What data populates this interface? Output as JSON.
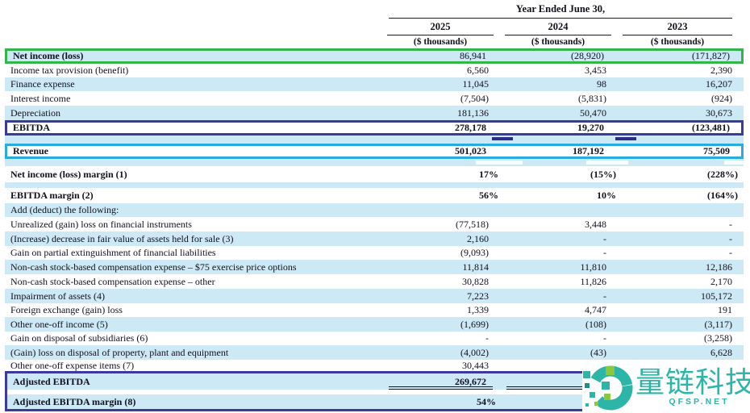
{
  "header": {
    "title": "Year Ended June 30,",
    "columns": [
      {
        "year": "2025",
        "unit": "($ thousands)"
      },
      {
        "year": "2024",
        "unit": "($ thousands)"
      },
      {
        "year": "2023",
        "unit": "($ thousands)"
      }
    ]
  },
  "rows": [
    {
      "label": "Net income (loss)",
      "values": [
        "86,941",
        "(28,920)",
        "(171,827)"
      ],
      "bold_label": true,
      "bg": "blue",
      "frame": "green"
    },
    {
      "label": "Income tax provision (benefit)",
      "values": [
        "6,560",
        "3,453",
        "2,390"
      ],
      "bg": "white"
    },
    {
      "label": "Finance expense",
      "values": [
        "11,045",
        "98",
        "16,207"
      ],
      "bg": "blue"
    },
    {
      "label": "Interest income",
      "values": [
        "(7,504)",
        "(5,831)",
        "(924)"
      ],
      "bg": "white"
    },
    {
      "label": "Depreciation",
      "values": [
        "181,136",
        "50,470",
        "30,673"
      ],
      "bg": "blue"
    },
    {
      "label": "EBITDA",
      "values": [
        "278,178",
        "19,270",
        "(123,481)"
      ],
      "bold_label": true,
      "bold_values": true,
      "bg": "white",
      "frame": "purple"
    },
    {
      "type": "spacer",
      "bg": "blue",
      "marks": "dark"
    },
    {
      "label": "Revenue",
      "values": [
        "501,023",
        "187,192",
        "75,509"
      ],
      "bold_label": true,
      "bold_values": true,
      "bg": "white",
      "frame": "cyan"
    },
    {
      "type": "spacer",
      "bg": "blue",
      "marks": "light"
    },
    {
      "label": "Net income (loss) margin (1)",
      "values": [
        "17%",
        "(15%)",
        "(228%)"
      ],
      "bold_label": true,
      "bold_values": true,
      "bg": "white",
      "percent": true
    },
    {
      "type": "spacer",
      "bg": "blue"
    },
    {
      "label": "EBITDA margin (2)",
      "values": [
        "56%",
        "10%",
        "(164%)"
      ],
      "bold_label": true,
      "bold_values": true,
      "bg": "white",
      "percent": true
    },
    {
      "label": "Add (deduct) the following:",
      "values": [
        "",
        "",
        ""
      ],
      "bg": "blue"
    },
    {
      "label": "Unrealized (gain) loss on financial instruments",
      "values": [
        "(77,518)",
        "3,448",
        "-"
      ],
      "bg": "white"
    },
    {
      "label": "(Increase) decrease in fair value of assets held for sale (3)",
      "values": [
        "2,160",
        "-",
        "-"
      ],
      "bg": "blue"
    },
    {
      "label": "Gain on partial extinguishment of financial liabilities",
      "values": [
        "(9,093)",
        "-",
        "-"
      ],
      "bg": "white"
    },
    {
      "label": "Non-cash stock-based compensation expense – $75 exercise price options",
      "values": [
        "11,814",
        "11,810",
        "12,186"
      ],
      "bg": "blue"
    },
    {
      "label": "Non-cash stock-based compensation expense – other",
      "values": [
        "30,828",
        "11,826",
        "2,170"
      ],
      "bg": "white"
    },
    {
      "label": "Impairment of assets (4)",
      "values": [
        "7,223",
        "-",
        "105,172"
      ],
      "bg": "blue"
    },
    {
      "label": "Foreign exchange (gain) loss",
      "values": [
        "1,339",
        "4,747",
        "191"
      ],
      "bg": "white"
    },
    {
      "label": "Other one-off income (5)",
      "values": [
        "(1,699)",
        "(108)",
        "(3,117)"
      ],
      "bg": "blue"
    },
    {
      "label": "Gain on disposal of subsidiaries (6)",
      "values": [
        "-",
        "-",
        "(3,258)"
      ],
      "bg": "white"
    },
    {
      "label": "(Gain) loss on disposal of property, plant and equipment",
      "values": [
        "(4,002)",
        "(43)",
        "6,628"
      ],
      "bg": "blue"
    },
    {
      "label": "Other one-off expense items (7)",
      "values": [
        "30,443",
        "",
        ""
      ],
      "bg": "white"
    },
    {
      "label": "Adjusted EBITDA",
      "values": [
        "269,672",
        "",
        ""
      ],
      "bold_label": true,
      "bold_values": true,
      "bg": "blue",
      "group": "adjusted",
      "dunder": true
    },
    {
      "type": "spacer",
      "bg": "white",
      "group": "adjusted"
    },
    {
      "label": "Adjusted EBITDA margin (8)",
      "values": [
        "54%",
        "",
        ""
      ],
      "bold_label": true,
      "bold_values": true,
      "bg": "blue",
      "percent": true,
      "group": "adjusted"
    }
  ],
  "watermark": {
    "brand": "量链科技",
    "domain": "QFSP.NET"
  },
  "colors": {
    "row_highlight": "#cde9f6",
    "frame_green": "#35b44a",
    "frame_purple": "#3b3b9d",
    "frame_cyan": "#29aae1",
    "watermark_teal": "#2db5a8",
    "watermark_green": "#8dc63f"
  }
}
